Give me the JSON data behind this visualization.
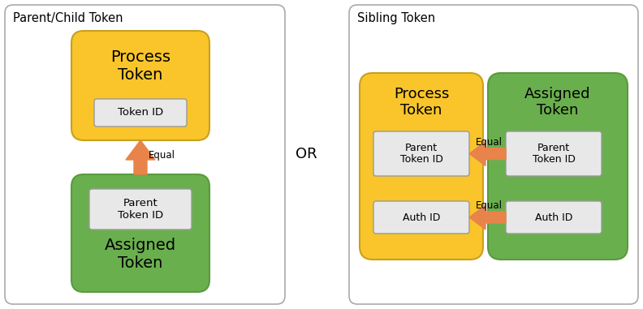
{
  "background_color": "#ffffff",
  "panel_border_color": "#aaaaaa",
  "yellow_fill": "#F9C52A",
  "yellow_border": "#C8A020",
  "green_fill": "#6AAF4E",
  "green_border": "#5A9A3E",
  "inner_box_fill": "#E8E8E8",
  "inner_box_border": "#999999",
  "arrow_color": "#E8834A",
  "text_color": "#000000",
  "panel1_title": "Parent/Child Token",
  "panel2_title": "Sibling Token",
  "or_text": "OR",
  "process_token_label": "Process\nToken",
  "assigned_token_label": "Assigned\nToken",
  "token_id_label": "Token ID",
  "parent_token_id_label": "Parent\nToken ID",
  "auth_id_label": "Auth ID",
  "equal_label": "Equal",
  "figw": 7.92,
  "figh": 3.81,
  "dpi": 100
}
